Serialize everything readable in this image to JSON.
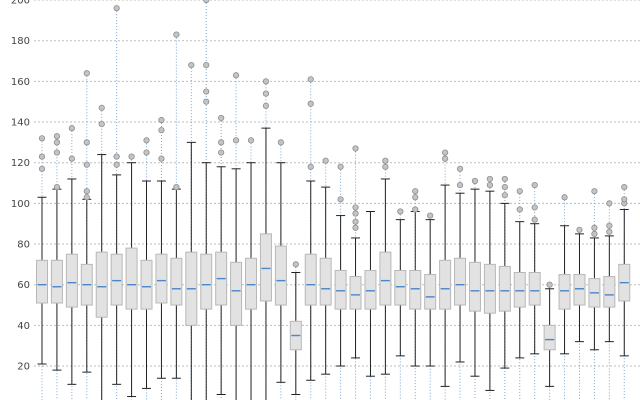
{
  "chart_data": {
    "type": "box",
    "ylim": [
      0,
      200
    ],
    "yticks": [
      20,
      40,
      60,
      80,
      100,
      120,
      140,
      160,
      180,
      200
    ],
    "grid": "horizontal-dashed",
    "colors": {
      "box_fill": "#e2e2e2",
      "box_edge": "#b8b8b8",
      "median": "#4a86c8",
      "whisker": "#222222",
      "outlier_fill": "#c4c4c4",
      "outlier_edge": "#8c8c8c",
      "grid": "#bdbdbd",
      "dotted_line": "#7aa6d6"
    },
    "boxes": [
      {
        "min": 21,
        "q1": 51,
        "median": 60,
        "q3": 72,
        "max": 103,
        "outliers": [
          117,
          123,
          132
        ]
      },
      {
        "min": 18,
        "q1": 51,
        "median": 59,
        "q3": 72,
        "max": 107,
        "outliers": [
          108,
          125,
          130,
          133
        ]
      },
      {
        "min": 11,
        "q1": 49,
        "median": 61,
        "q3": 75,
        "max": 112,
        "outliers": [
          122,
          137
        ]
      },
      {
        "min": 17,
        "q1": 50,
        "median": 60,
        "q3": 70,
        "max": 102,
        "outliers": [
          103,
          106,
          119,
          130,
          164
        ]
      },
      {
        "min": 0,
        "q1": 44,
        "median": 59,
        "q3": 76,
        "max": 124,
        "outliers": [
          139,
          147
        ]
      },
      {
        "min": 11,
        "q1": 50,
        "median": 62,
        "q3": 75,
        "max": 114,
        "outliers": [
          119,
          123,
          196
        ]
      },
      {
        "min": 5,
        "q1": 48,
        "median": 60,
        "q3": 78,
        "max": 120,
        "outliers": [
          123
        ]
      },
      {
        "min": 9,
        "q1": 48,
        "median": 59,
        "q3": 72,
        "max": 111,
        "outliers": [
          125,
          131
        ]
      },
      {
        "min": 14,
        "q1": 51,
        "median": 62,
        "q3": 75,
        "max": 111,
        "outliers": [
          122,
          136,
          141
        ]
      },
      {
        "min": 14,
        "q1": 50,
        "median": 58,
        "q3": 73,
        "max": 107,
        "outliers": [
          108,
          183
        ]
      },
      {
        "min": 0,
        "q1": 40,
        "median": 58,
        "q3": 76,
        "max": 130,
        "outliers": [
          168
        ]
      },
      {
        "min": 0,
        "q1": 48,
        "median": 60,
        "q3": 75,
        "max": 120,
        "outliers": [
          150,
          155,
          168,
          200
        ]
      },
      {
        "min": 6,
        "q1": 50,
        "median": 63,
        "q3": 76,
        "max": 118,
        "outliers": [
          125,
          130,
          142
        ]
      },
      {
        "min": 0,
        "q1": 40,
        "median": 57,
        "q3": 71,
        "max": 117,
        "outliers": [
          131,
          163
        ]
      },
      {
        "min": 2,
        "q1": 48,
        "median": 60,
        "q3": 73,
        "max": 120,
        "outliers": [
          131
        ]
      },
      {
        "min": 0,
        "q1": 52,
        "median": 68,
        "q3": 85,
        "max": 137,
        "outliers": [
          148,
          154,
          160
        ]
      },
      {
        "min": 12,
        "q1": 50,
        "median": 62,
        "q3": 79,
        "max": 120,
        "outliers": [
          130
        ]
      },
      {
        "min": 6,
        "q1": 28,
        "median": 35,
        "q3": 42,
        "max": 66,
        "outliers": [
          70
        ]
      },
      {
        "min": 13,
        "q1": 50,
        "median": 60,
        "q3": 75,
        "max": 111,
        "outliers": [
          118,
          149,
          161
        ]
      },
      {
        "min": 16,
        "q1": 50,
        "median": 58,
        "q3": 73,
        "max": 108,
        "outliers": [
          121
        ]
      },
      {
        "min": 20,
        "q1": 48,
        "median": 57,
        "q3": 67,
        "max": 94,
        "outliers": [
          102,
          118
        ]
      },
      {
        "min": 24,
        "q1": 48,
        "median": 55,
        "q3": 64,
        "max": 83,
        "outliers": [
          88,
          91,
          95,
          98,
          127
        ]
      },
      {
        "min": 15,
        "q1": 48,
        "median": 57,
        "q3": 67,
        "max": 96,
        "outliers": []
      },
      {
        "min": 16,
        "q1": 50,
        "median": 62,
        "q3": 76,
        "max": 112,
        "outliers": [
          118,
          121
        ]
      },
      {
        "min": 25,
        "q1": 50,
        "median": 59,
        "q3": 67,
        "max": 92,
        "outliers": [
          96
        ]
      },
      {
        "min": 20,
        "q1": 48,
        "median": 58,
        "q3": 67,
        "max": 96,
        "outliers": [
          97,
          103,
          106
        ]
      },
      {
        "min": 20,
        "q1": 48,
        "median": 54,
        "q3": 65,
        "max": 92,
        "outliers": [
          94
        ]
      },
      {
        "min": 10,
        "q1": 48,
        "median": 58,
        "q3": 72,
        "max": 109,
        "outliers": [
          122,
          125
        ]
      },
      {
        "min": 22,
        "q1": 50,
        "median": 60,
        "q3": 73,
        "max": 105,
        "outliers": [
          109,
          117
        ]
      },
      {
        "min": 15,
        "q1": 47,
        "median": 57,
        "q3": 71,
        "max": 107,
        "outliers": [
          111
        ]
      },
      {
        "min": 8,
        "q1": 46,
        "median": 57,
        "q3": 70,
        "max": 106,
        "outliers": [
          109,
          112
        ]
      },
      {
        "min": 19,
        "q1": 47,
        "median": 57,
        "q3": 69,
        "max": 100,
        "outliers": [
          104,
          108,
          112
        ]
      },
      {
        "min": 24,
        "q1": 49,
        "median": 57,
        "q3": 66,
        "max": 91,
        "outliers": [
          97,
          106
        ]
      },
      {
        "min": 26,
        "q1": 50,
        "median": 57,
        "q3": 66,
        "max": 90,
        "outliers": [
          92,
          98,
          109
        ]
      },
      {
        "min": 10,
        "q1": 28,
        "median": 33,
        "q3": 40,
        "max": 58,
        "outliers": [
          60
        ]
      },
      {
        "min": 26,
        "q1": 48,
        "median": 57,
        "q3": 65,
        "max": 89,
        "outliers": [
          103
        ]
      },
      {
        "min": 32,
        "q1": 50,
        "median": 58,
        "q3": 65,
        "max": 85,
        "outliers": [
          87
        ]
      },
      {
        "min": 28,
        "q1": 49,
        "median": 56,
        "q3": 63,
        "max": 83,
        "outliers": [
          85,
          88,
          106
        ]
      },
      {
        "min": 32,
        "q1": 49,
        "median": 55,
        "q3": 64,
        "max": 84,
        "outliers": [
          86,
          89,
          100
        ]
      },
      {
        "min": 25,
        "q1": 52,
        "median": 61,
        "q3": 70,
        "max": 97,
        "outliers": [
          100,
          102,
          108
        ]
      }
    ]
  }
}
